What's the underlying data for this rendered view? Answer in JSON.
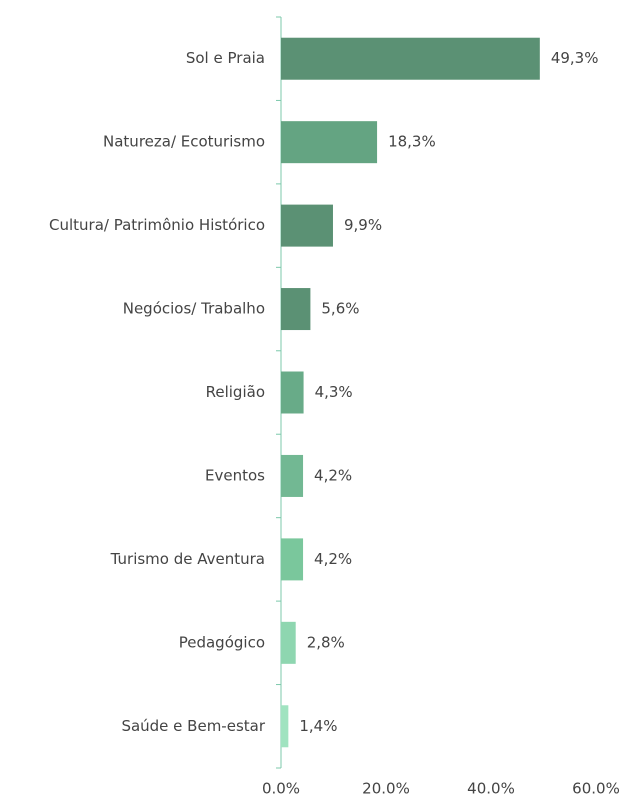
{
  "chart_data": {
    "type": "barh",
    "categories": [
      "Sol e Praia",
      "Natureza/ Ecoturismo",
      "Cultura/ Patrimônio Histórico",
      "Negócios/ Trabalho",
      "Religião",
      "Eventos",
      "Turismo de Aventura",
      "Pedagógico",
      "Saúde e Bem-estar"
    ],
    "values": [
      49.3,
      18.3,
      9.9,
      5.6,
      4.3,
      4.2,
      4.2,
      2.8,
      1.4
    ],
    "value_labels": [
      "49,3%",
      "18,3%",
      "9,9%",
      "5,6%",
      "4,3%",
      "4,2%",
      "4,2%",
      "2,8%",
      "1,4%"
    ],
    "colors": [
      "#5b9174",
      "#64a482",
      "#5b9174",
      "#5b9174",
      "#68ab88",
      "#72b893",
      "#7ac79c",
      "#8ed6b0",
      "#a0e3c0"
    ],
    "xlim": [
      0,
      60
    ],
    "xticks": [
      {
        "value": 0,
        "label": "0.0%"
      },
      {
        "value": 20,
        "label": "20.0%"
      },
      {
        "value": 40,
        "label": "40.0%"
      },
      {
        "value": 60,
        "label": "60.0%"
      }
    ]
  }
}
